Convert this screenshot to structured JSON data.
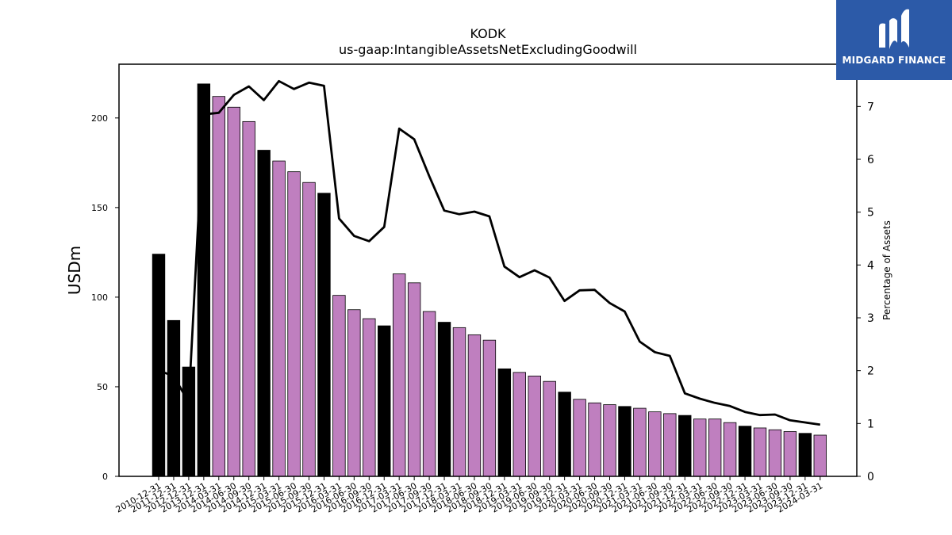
{
  "chart_data": {
    "type": "bar",
    "title": "KODK",
    "subtitle": "us-gaap:IntangibleAssetsNetExcludingGoodwill",
    "ylabel": "USDm",
    "y2label": "Percentage of Assets",
    "ylim": [
      0,
      230
    ],
    "y2lim": [
      0,
      7.8
    ],
    "yticks": [
      0,
      50,
      100,
      150,
      200
    ],
    "y2ticks": [
      0,
      1,
      2,
      3,
      4,
      5,
      6,
      7
    ],
    "colors": {
      "annual": "#000000",
      "quarterly": "#bf7fbf",
      "line": "#000000",
      "logo_bg": "#2c5aa8"
    },
    "categories": [
      "2010-12-31",
      "2011-12-31",
      "2012-12-31",
      "2013-12-31",
      "2014-03-31",
      "2014-06-30",
      "2014-09-30",
      "2014-12-31",
      "2015-03-31",
      "2015-06-30",
      "2015-09-30",
      "2015-12-31",
      "2016-03-31",
      "2016-06-30",
      "2016-09-30",
      "2016-12-31",
      "2017-03-31",
      "2017-06-30",
      "2017-09-30",
      "2017-12-31",
      "2018-03-31",
      "2018-06-30",
      "2018-09-30",
      "2018-12-31",
      "2019-03-31",
      "2019-06-30",
      "2019-09-30",
      "2019-12-31",
      "2020-03-31",
      "2020-06-30",
      "2020-09-30",
      "2020-12-31",
      "2021-03-31",
      "2021-06-30",
      "2021-09-30",
      "2021-12-31",
      "2022-03-31",
      "2022-06-30",
      "2022-09-30",
      "2022-12-31",
      "2023-03-31",
      "2023-06-30",
      "2023-09-30",
      "2023-12-31",
      "2024-03-31"
    ],
    "series": [
      {
        "values": [
          124,
          87,
          61,
          219,
          212,
          206,
          198,
          182,
          176,
          170,
          164,
          158,
          101,
          93,
          88,
          84,
          113,
          108,
          92,
          86,
          83,
          79,
          76,
          60,
          58,
          56,
          53,
          47,
          43,
          41,
          40,
          39,
          38,
          36,
          35,
          34,
          32,
          32,
          30,
          28,
          27,
          26,
          25,
          24,
          23
        ],
        "period": [
          "annual",
          "annual",
          "annual",
          "annual",
          "quarterly",
          "quarterly",
          "quarterly",
          "annual",
          "quarterly",
          "quarterly",
          "quarterly",
          "annual",
          "quarterly",
          "quarterly",
          "quarterly",
          "annual",
          "quarterly",
          "quarterly",
          "quarterly",
          "annual",
          "quarterly",
          "quarterly",
          "quarterly",
          "annual",
          "quarterly",
          "quarterly",
          "quarterly",
          "annual",
          "quarterly",
          "quarterly",
          "quarterly",
          "annual",
          "quarterly",
          "quarterly",
          "quarterly",
          "annual",
          "quarterly",
          "quarterly",
          "quarterly",
          "annual",
          "quarterly",
          "quarterly",
          "quarterly",
          "annual",
          "quarterly"
        ]
      },
      {
        "axis": "right",
        "values": [
          2.0,
          1.9,
          1.4,
          6.85,
          6.88,
          7.22,
          7.38,
          7.12,
          7.48,
          7.33,
          7.45,
          7.39,
          4.88,
          4.55,
          4.45,
          4.72,
          6.58,
          6.38,
          5.68,
          5.03,
          4.96,
          5.01,
          4.92,
          3.97,
          3.77,
          3.9,
          3.76,
          3.32,
          3.52,
          3.53,
          3.28,
          3.12,
          2.55,
          2.35,
          2.28,
          1.57,
          1.47,
          1.39,
          1.33,
          1.22,
          1.16,
          1.17,
          1.06,
          1.02,
          0.98
        ]
      }
    ]
  },
  "logo": {
    "text": "MIDGARD FINANCE"
  }
}
